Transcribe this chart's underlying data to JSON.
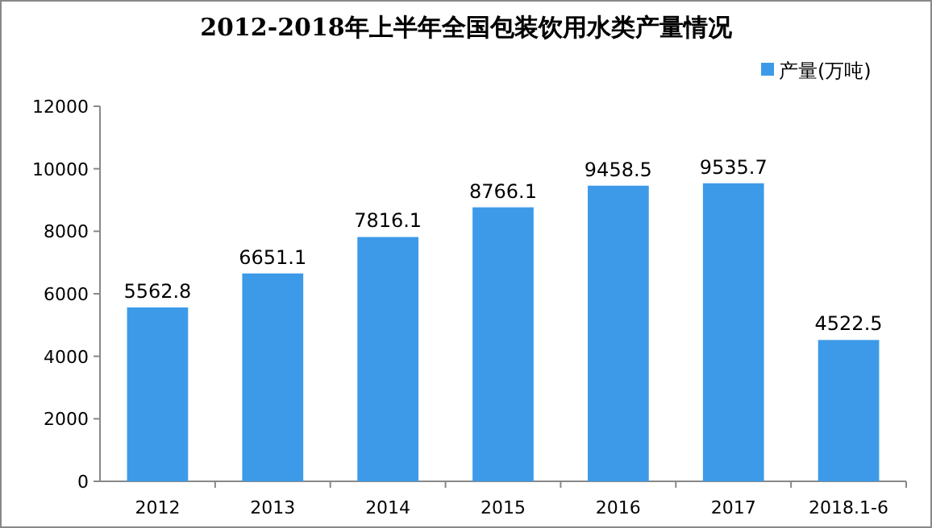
{
  "chart_data": {
    "type": "bar",
    "title": "2012-2018年上半年全国包装饮用水类产量情况",
    "categories": [
      "2012",
      "2013",
      "2014",
      "2015",
      "2016",
      "2017",
      "2018.1-6"
    ],
    "series": [
      {
        "name": "产量(万吨)",
        "color": "#3d9ae8",
        "values": [
          5562.8,
          6651.1,
          7816.1,
          8766.1,
          9458.5,
          9535.7,
          4522.5
        ]
      }
    ],
    "ylim": [
      0,
      12000
    ],
    "yticks": [
      0,
      2000,
      4000,
      6000,
      8000,
      10000,
      12000
    ],
    "data_labels": true,
    "legend": "top right"
  }
}
